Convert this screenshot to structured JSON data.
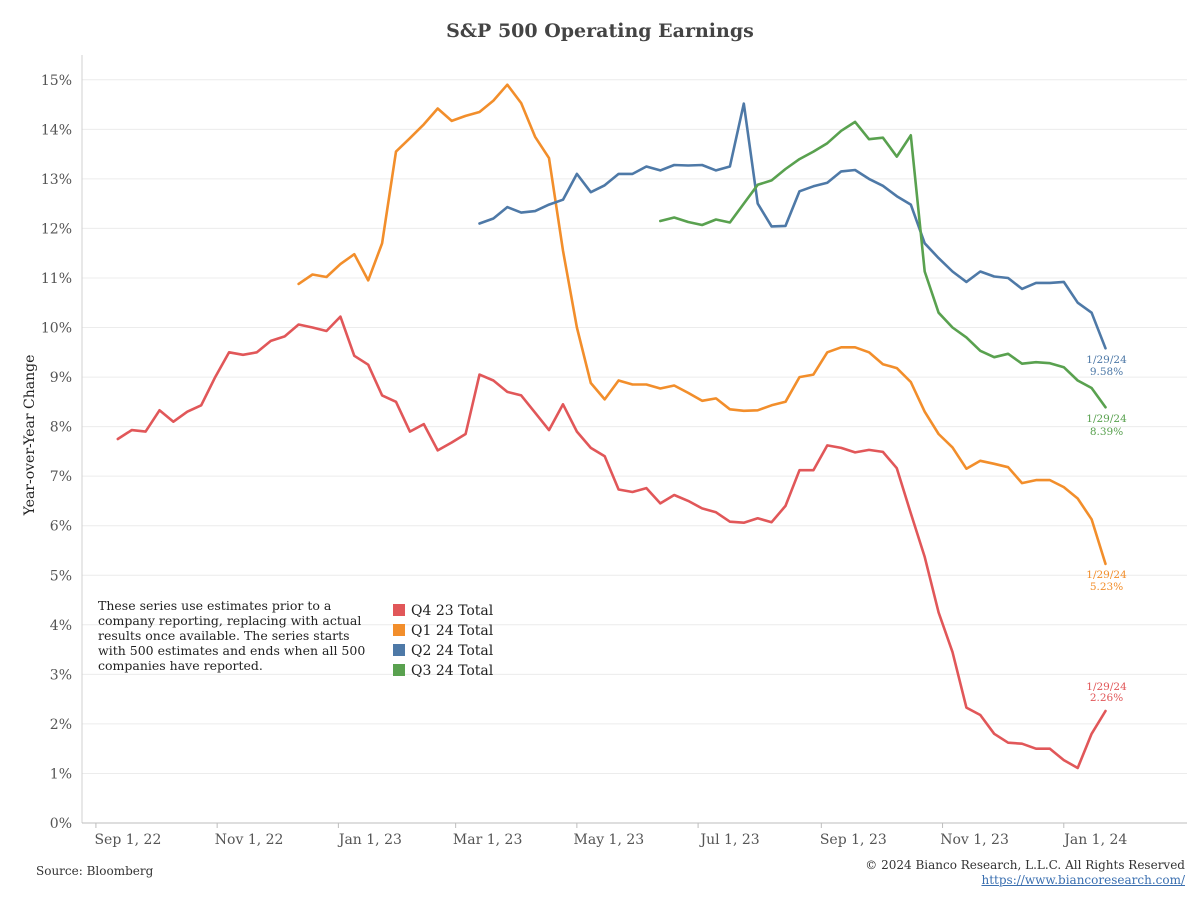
{
  "chart_data": {
    "type": "line",
    "title": "S&P 500 Operating Earnings",
    "ylabel": "Year-over-Year Change",
    "ylim": [
      0,
      15.5
    ],
    "y_ticks": [
      "0%",
      "1%",
      "2%",
      "3%",
      "4%",
      "5%",
      "6%",
      "7%",
      "8%",
      "9%",
      "10%",
      "11%",
      "12%",
      "13%",
      "14%",
      "15%"
    ],
    "xlim": [
      "2022-08-25",
      "2024-03-03"
    ],
    "x_ticks": [
      {
        "date": "2022-09-01",
        "label": "Sep 1, 22"
      },
      {
        "date": "2022-11-01",
        "label": "Nov 1, 22"
      },
      {
        "date": "2023-01-01",
        "label": "Jan 1, 23"
      },
      {
        "date": "2023-03-01",
        "label": "Mar 1, 23"
      },
      {
        "date": "2023-05-01",
        "label": "May 1, 23"
      },
      {
        "date": "2023-07-01",
        "label": "Jul 1, 23"
      },
      {
        "date": "2023-09-01",
        "label": "Sep 1, 23"
      },
      {
        "date": "2023-11-01",
        "label": "Nov 1, 23"
      },
      {
        "date": "2024-01-01",
        "label": "Jan 1, 24"
      }
    ],
    "grid": true,
    "legend": "lower-left",
    "series": [
      {
        "name": "Q4 23 Total",
        "color": "#e15759",
        "end_label": [
          "1/29/24",
          "2.26%"
        ],
        "points": [
          [
            "2022-09-12",
            7.75
          ],
          [
            "2022-09-19",
            7.93
          ],
          [
            "2022-09-26",
            7.9
          ],
          [
            "2022-10-03",
            8.33
          ],
          [
            "2022-10-10",
            8.1
          ],
          [
            "2022-10-17",
            8.3
          ],
          [
            "2022-10-24",
            8.43
          ],
          [
            "2022-10-31",
            9.0
          ],
          [
            "2022-11-07",
            9.5
          ],
          [
            "2022-11-14",
            9.45
          ],
          [
            "2022-11-21",
            9.5
          ],
          [
            "2022-11-28",
            9.73
          ],
          [
            "2022-12-05",
            9.82
          ],
          [
            "2022-12-12",
            10.06
          ],
          [
            "2022-12-19",
            10.0
          ],
          [
            "2022-12-26",
            9.93
          ],
          [
            "2023-01-02",
            10.22
          ],
          [
            "2023-01-09",
            9.43
          ],
          [
            "2023-01-16",
            9.25
          ],
          [
            "2023-01-23",
            8.63
          ],
          [
            "2023-01-30",
            8.5
          ],
          [
            "2023-02-06",
            7.9
          ],
          [
            "2023-02-13",
            8.05
          ],
          [
            "2023-02-20",
            7.52
          ],
          [
            "2023-02-27",
            7.68
          ],
          [
            "2023-03-06",
            7.85
          ],
          [
            "2023-03-13",
            9.05
          ],
          [
            "2023-03-20",
            8.93
          ],
          [
            "2023-03-27",
            8.7
          ],
          [
            "2023-04-03",
            8.63
          ],
          [
            "2023-04-10",
            8.28
          ],
          [
            "2023-04-17",
            7.93
          ],
          [
            "2023-04-24",
            8.45
          ],
          [
            "2023-05-01",
            7.9
          ],
          [
            "2023-05-08",
            7.57
          ],
          [
            "2023-05-15",
            7.4
          ],
          [
            "2023-05-22",
            6.73
          ],
          [
            "2023-05-29",
            6.68
          ],
          [
            "2023-06-05",
            6.76
          ],
          [
            "2023-06-12",
            6.45
          ],
          [
            "2023-06-19",
            6.62
          ],
          [
            "2023-06-26",
            6.5
          ],
          [
            "2023-07-03",
            6.35
          ],
          [
            "2023-07-10",
            6.27
          ],
          [
            "2023-07-17",
            6.08
          ],
          [
            "2023-07-24",
            6.06
          ],
          [
            "2023-07-31",
            6.15
          ],
          [
            "2023-08-07",
            6.07
          ],
          [
            "2023-08-14",
            6.4
          ],
          [
            "2023-08-21",
            7.12
          ],
          [
            "2023-08-28",
            7.12
          ],
          [
            "2023-09-04",
            7.62
          ],
          [
            "2023-09-11",
            7.57
          ],
          [
            "2023-09-18",
            7.48
          ],
          [
            "2023-09-25",
            7.53
          ],
          [
            "2023-10-02",
            7.49
          ],
          [
            "2023-10-09",
            7.16
          ],
          [
            "2023-10-16",
            6.25
          ],
          [
            "2023-10-23",
            5.37
          ],
          [
            "2023-10-30",
            4.25
          ],
          [
            "2023-11-06",
            3.45
          ],
          [
            "2023-11-13",
            2.33
          ],
          [
            "2023-11-20",
            2.18
          ],
          [
            "2023-11-27",
            1.8
          ],
          [
            "2023-12-04",
            1.62
          ],
          [
            "2023-12-11",
            1.6
          ],
          [
            "2023-12-18",
            1.5
          ],
          [
            "2023-12-25",
            1.5
          ],
          [
            "2024-01-01",
            1.27
          ],
          [
            "2024-01-08",
            1.11
          ],
          [
            "2024-01-15",
            1.8
          ],
          [
            "2024-01-22",
            2.26
          ]
        ]
      },
      {
        "name": "Q1 24 Total",
        "color": "#f28e2b",
        "end_label": [
          "1/29/24",
          "5.23%"
        ],
        "points": [
          [
            "2022-12-12",
            10.88
          ],
          [
            "2022-12-19",
            11.07
          ],
          [
            "2022-12-26",
            11.02
          ],
          [
            "2023-01-02",
            11.28
          ],
          [
            "2023-01-09",
            11.48
          ],
          [
            "2023-01-16",
            10.95
          ],
          [
            "2023-01-23",
            11.7
          ],
          [
            "2023-01-30",
            13.55
          ],
          [
            "2023-02-06",
            13.82
          ],
          [
            "2023-02-13",
            14.1
          ],
          [
            "2023-02-20",
            14.42
          ],
          [
            "2023-02-27",
            14.17
          ],
          [
            "2023-03-06",
            14.27
          ],
          [
            "2023-03-13",
            14.35
          ],
          [
            "2023-03-20",
            14.58
          ],
          [
            "2023-03-27",
            14.9
          ],
          [
            "2023-04-03",
            14.53
          ],
          [
            "2023-04-10",
            13.85
          ],
          [
            "2023-04-17",
            13.42
          ],
          [
            "2023-04-24",
            11.55
          ],
          [
            "2023-05-01",
            10.0
          ],
          [
            "2023-05-08",
            8.88
          ],
          [
            "2023-05-15",
            8.55
          ],
          [
            "2023-05-22",
            8.93
          ],
          [
            "2023-05-29",
            8.85
          ],
          [
            "2023-06-05",
            8.85
          ],
          [
            "2023-06-12",
            8.77
          ],
          [
            "2023-06-19",
            8.83
          ],
          [
            "2023-06-26",
            8.68
          ],
          [
            "2023-07-03",
            8.52
          ],
          [
            "2023-07-10",
            8.57
          ],
          [
            "2023-07-17",
            8.35
          ],
          [
            "2023-07-24",
            8.32
          ],
          [
            "2023-07-31",
            8.33
          ],
          [
            "2023-08-07",
            8.43
          ],
          [
            "2023-08-14",
            8.5
          ],
          [
            "2023-08-21",
            9.0
          ],
          [
            "2023-08-28",
            9.05
          ],
          [
            "2023-09-04",
            9.5
          ],
          [
            "2023-09-11",
            9.6
          ],
          [
            "2023-09-18",
            9.6
          ],
          [
            "2023-09-25",
            9.5
          ],
          [
            "2023-10-02",
            9.26
          ],
          [
            "2023-10-09",
            9.18
          ],
          [
            "2023-10-16",
            8.9
          ],
          [
            "2023-10-23",
            8.3
          ],
          [
            "2023-10-30",
            7.85
          ],
          [
            "2023-11-06",
            7.58
          ],
          [
            "2023-11-13",
            7.15
          ],
          [
            "2023-11-20",
            7.31
          ],
          [
            "2023-11-27",
            7.25
          ],
          [
            "2023-12-04",
            7.18
          ],
          [
            "2023-12-11",
            6.86
          ],
          [
            "2023-12-18",
            6.92
          ],
          [
            "2023-12-25",
            6.92
          ],
          [
            "2024-01-01",
            6.78
          ],
          [
            "2024-01-08",
            6.55
          ],
          [
            "2024-01-15",
            6.13
          ],
          [
            "2024-01-22",
            5.23
          ]
        ]
      },
      {
        "name": "Q2 24 Total",
        "color": "#4e79a7",
        "end_label": [
          "1/29/24",
          "9.58%"
        ],
        "points": [
          [
            "2023-03-13",
            12.1
          ],
          [
            "2023-03-20",
            12.2
          ],
          [
            "2023-03-27",
            12.43
          ],
          [
            "2023-04-03",
            12.32
          ],
          [
            "2023-04-10",
            12.35
          ],
          [
            "2023-04-17",
            12.48
          ],
          [
            "2023-04-24",
            12.58
          ],
          [
            "2023-05-01",
            13.1
          ],
          [
            "2023-05-08",
            12.73
          ],
          [
            "2023-05-15",
            12.87
          ],
          [
            "2023-05-22",
            13.1
          ],
          [
            "2023-05-29",
            13.1
          ],
          [
            "2023-06-05",
            13.25
          ],
          [
            "2023-06-12",
            13.17
          ],
          [
            "2023-06-19",
            13.28
          ],
          [
            "2023-06-26",
            13.27
          ],
          [
            "2023-07-03",
            13.28
          ],
          [
            "2023-07-10",
            13.17
          ],
          [
            "2023-07-17",
            13.25
          ],
          [
            "2023-07-24",
            14.52
          ],
          [
            "2023-07-31",
            12.5
          ],
          [
            "2023-08-07",
            12.04
          ],
          [
            "2023-08-14",
            12.05
          ],
          [
            "2023-08-21",
            12.75
          ],
          [
            "2023-08-28",
            12.85
          ],
          [
            "2023-09-04",
            12.92
          ],
          [
            "2023-09-11",
            13.15
          ],
          [
            "2023-09-18",
            13.18
          ],
          [
            "2023-09-25",
            13.0
          ],
          [
            "2023-10-02",
            12.86
          ],
          [
            "2023-10-09",
            12.65
          ],
          [
            "2023-10-16",
            12.48
          ],
          [
            "2023-10-23",
            11.7
          ],
          [
            "2023-10-30",
            11.4
          ],
          [
            "2023-11-06",
            11.13
          ],
          [
            "2023-11-13",
            10.92
          ],
          [
            "2023-11-20",
            11.13
          ],
          [
            "2023-11-27",
            11.03
          ],
          [
            "2023-12-04",
            11.0
          ],
          [
            "2023-12-11",
            10.78
          ],
          [
            "2023-12-18",
            10.9
          ],
          [
            "2023-12-25",
            10.9
          ],
          [
            "2024-01-01",
            10.92
          ],
          [
            "2024-01-08",
            10.5
          ],
          [
            "2024-01-15",
            10.3
          ],
          [
            "2024-01-22",
            9.58
          ]
        ]
      },
      {
        "name": "Q3 24 Total",
        "color": "#59a14f",
        "end_label": [
          "1/29/24",
          "8.39%"
        ],
        "points": [
          [
            "2023-06-12",
            12.15
          ],
          [
            "2023-06-19",
            12.22
          ],
          [
            "2023-06-26",
            12.13
          ],
          [
            "2023-07-03",
            12.07
          ],
          [
            "2023-07-10",
            12.18
          ],
          [
            "2023-07-17",
            12.12
          ],
          [
            "2023-07-24",
            12.5
          ],
          [
            "2023-07-31",
            12.88
          ],
          [
            "2023-08-07",
            12.97
          ],
          [
            "2023-08-14",
            13.2
          ],
          [
            "2023-08-21",
            13.4
          ],
          [
            "2023-08-28",
            13.55
          ],
          [
            "2023-09-04",
            13.72
          ],
          [
            "2023-09-11",
            13.97
          ],
          [
            "2023-09-18",
            14.15
          ],
          [
            "2023-09-25",
            13.8
          ],
          [
            "2023-10-02",
            13.83
          ],
          [
            "2023-10-09",
            13.45
          ],
          [
            "2023-10-16",
            13.88
          ],
          [
            "2023-10-23",
            11.13
          ],
          [
            "2023-10-30",
            10.3
          ],
          [
            "2023-11-06",
            10.0
          ],
          [
            "2023-11-13",
            9.8
          ],
          [
            "2023-11-20",
            9.53
          ],
          [
            "2023-11-27",
            9.4
          ],
          [
            "2023-12-04",
            9.47
          ],
          [
            "2023-12-11",
            9.27
          ],
          [
            "2023-12-18",
            9.3
          ],
          [
            "2023-12-25",
            9.28
          ],
          [
            "2024-01-01",
            9.2
          ],
          [
            "2024-01-08",
            8.93
          ],
          [
            "2024-01-15",
            8.78
          ],
          [
            "2024-01-22",
            8.39
          ]
        ]
      }
    ],
    "annotation_lines": [
      "These series use estimates prior to a",
      "company reporting, replacing with actual",
      "results once available. The series starts",
      "with 500 estimates and ends when all 500",
      "companies have reported."
    ]
  },
  "footer": {
    "source": "Source: Bloomberg",
    "copyright": "© 2024 Bianco Research, L.L.C. All Rights Reserved",
    "url": "https://www.biancoresearch.com/"
  }
}
